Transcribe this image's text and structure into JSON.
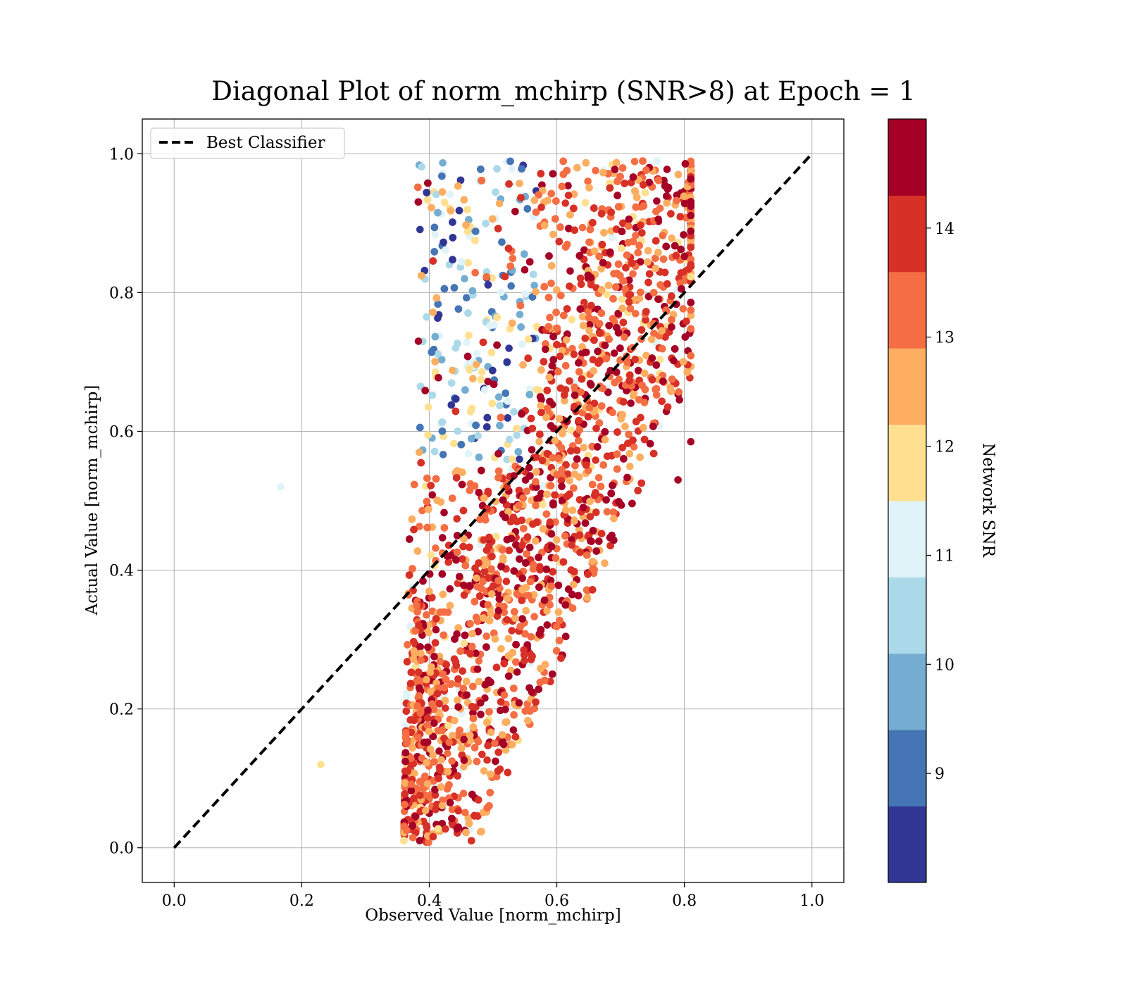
{
  "chart_data": {
    "type": "scatter",
    "title": "Diagonal Plot of norm_mchirp (SNR>8) at Epoch = 1",
    "xlabel": "Observed Value [norm_mchirp]",
    "ylabel": "Actual Value [norm_mchirp]",
    "xlim": [
      -0.05,
      1.05
    ],
    "ylim": [
      -0.05,
      1.05
    ],
    "x_ticks": [
      "0.0",
      "0.2",
      "0.4",
      "0.6",
      "0.8",
      "1.0"
    ],
    "y_ticks": [
      "0.0",
      "0.2",
      "0.4",
      "0.6",
      "0.8",
      "1.0"
    ],
    "grid": true,
    "legend": {
      "position": "top-left",
      "entries": [
        "Best Classifier"
      ]
    },
    "reference_line": {
      "name": "Best Classifier",
      "x": [
        0.0,
        1.0
      ],
      "y": [
        0.0,
        1.0
      ],
      "style": "dashed",
      "color": "#000000"
    },
    "colorbar": {
      "label": "Network SNR",
      "range": [
        8.0,
        15.0
      ],
      "ticks": [
        "9",
        "10",
        "11",
        "12",
        "13",
        "14"
      ],
      "bands": [
        "#313695",
        "#4575b4",
        "#74add1",
        "#abd9e9",
        "#e0f3f8",
        "#fee090",
        "#fdae61",
        "#f46d43",
        "#d73027",
        "#a50026"
      ]
    },
    "point_clusters": [
      {
        "region": "lower-diagonal core",
        "x_range": [
          0.34,
          0.42
        ],
        "y_range": [
          0.0,
          0.35
        ],
        "dominant_snr": 14.5
      },
      {
        "region": "central diagonal band",
        "x_range": [
          0.38,
          0.8
        ],
        "y_range": [
          0.2,
          0.98
        ],
        "dominant_snr": 14.0
      },
      {
        "region": "upper-left low-SNR group",
        "x_range": [
          0.36,
          0.55
        ],
        "y_range": [
          0.6,
          1.0
        ],
        "dominant_snr": 9.5
      },
      {
        "region": "upper mid-SNR group",
        "x_range": [
          0.38,
          0.62
        ],
        "y_range": [
          0.5,
          0.98
        ],
        "dominant_snr": 11.8
      }
    ],
    "outliers": [
      {
        "x": 0.167,
        "y": 0.52,
        "snr": 11.2
      },
      {
        "x": 0.23,
        "y": 0.12,
        "snr": 12.2
      },
      {
        "x": 0.81,
        "y": 0.585,
        "snr": 14.8
      },
      {
        "x": 0.79,
        "y": 0.53,
        "snr": 14.8
      }
    ]
  }
}
